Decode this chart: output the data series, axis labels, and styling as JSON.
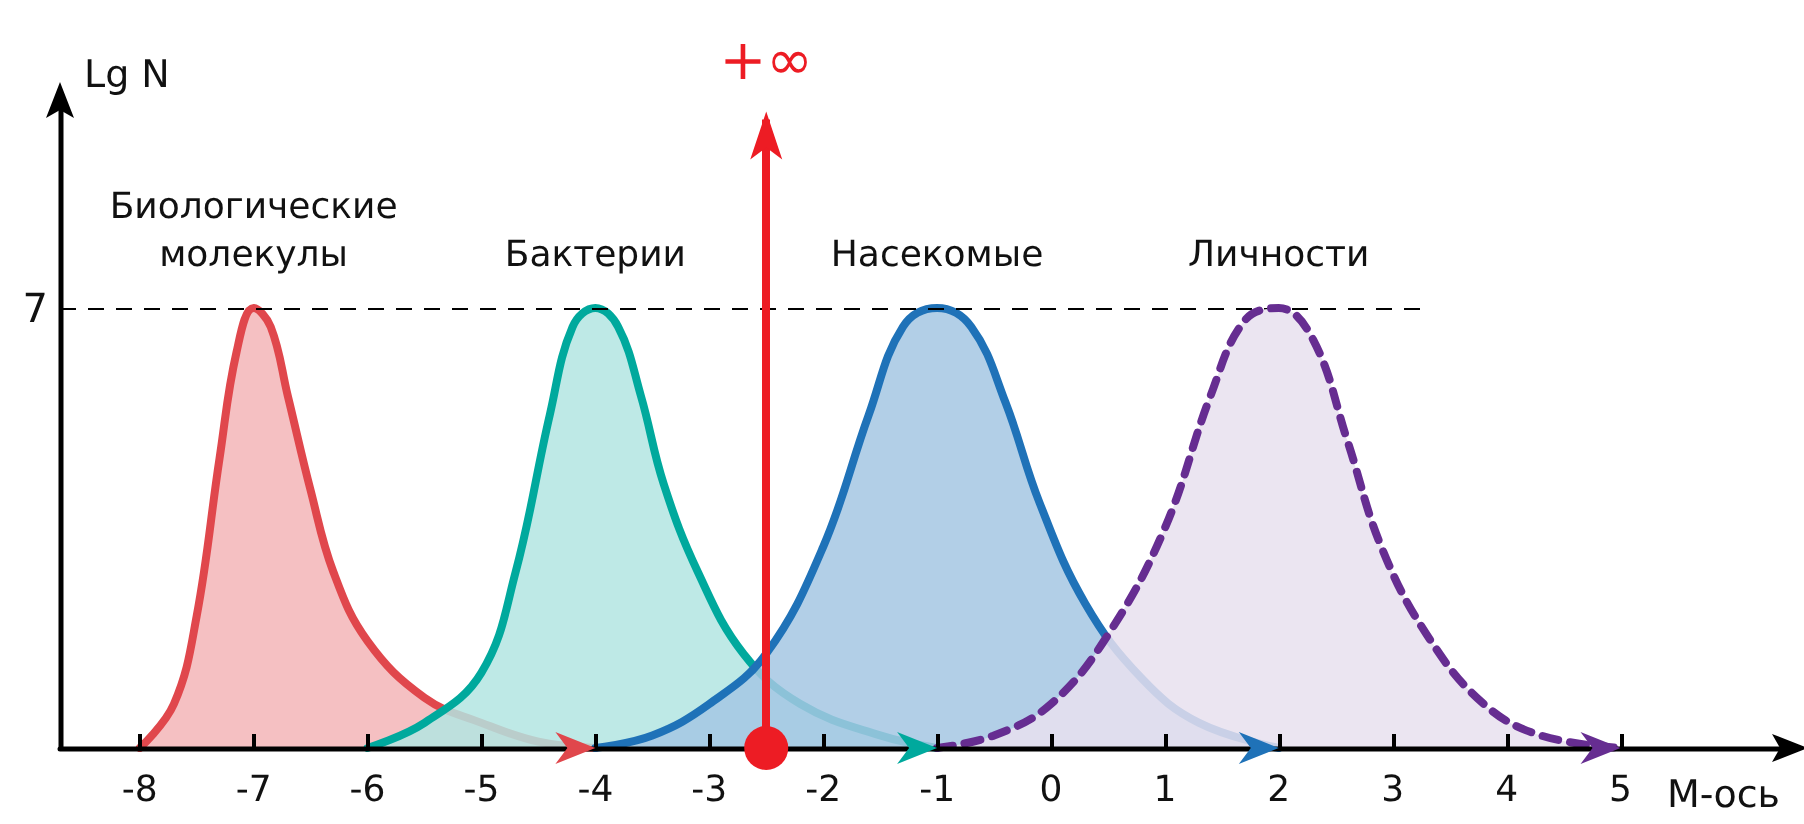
{
  "chart_data": {
    "type": "area",
    "xlabel": "M-ось",
    "ylabel": "Lg N",
    "xlim": [
      -8.7,
      6.4
    ],
    "xticks": [
      -8,
      -7,
      -6,
      -5,
      -4,
      -3,
      -2,
      -1,
      0,
      1,
      2,
      3,
      4,
      5
    ],
    "ylim": [
      0,
      10.15
    ],
    "yticks": [
      7
    ],
    "legend": false,
    "ref_lines": [
      {
        "axis": "y",
        "value": 7,
        "label": null,
        "color": "#000000",
        "line_style": "dashed"
      },
      {
        "axis": "x",
        "value": -2.5,
        "label": "+∞",
        "color": "#ed1c24",
        "line_style": "solid"
      }
    ],
    "series": [
      {
        "name": "Биологические молекулы",
        "color": "#e0474c",
        "line_style": "solid",
        "x": [
          -8,
          -7.7,
          -7.5,
          -7.3,
          -7.15,
          -7,
          -6.85,
          -6.7,
          -6.5,
          -6.3,
          -6,
          -5.5,
          -5,
          -4.5,
          -4
        ],
        "values": [
          0,
          0.7,
          2.1,
          4.6,
          6.3,
          7,
          6.7,
          5.6,
          4.1,
          2.8,
          1.7,
          0.8,
          0.4,
          0.1,
          0
        ]
      },
      {
        "name": "Бактерии",
        "color": "#00a99d",
        "line_style": "solid",
        "x": [
          -6,
          -5.5,
          -5,
          -4.7,
          -4.4,
          -4.2,
          -4,
          -3.8,
          -3.6,
          -3.4,
          -3.1,
          -2.7,
          -2.2,
          -1.5,
          -1
        ],
        "values": [
          0,
          0.4,
          1.2,
          2.8,
          5.3,
          6.7,
          7,
          6.7,
          5.6,
          4.2,
          2.8,
          1.5,
          0.7,
          0.2,
          0
        ]
      },
      {
        "name": "Насекомые",
        "color": "#1f72b8",
        "line_style": "solid",
        "x": [
          -4,
          -3.5,
          -3,
          -2.5,
          -2,
          -1.6,
          -1.3,
          -1,
          -0.7,
          -0.4,
          -0.1,
          0.3,
          0.8,
          1.3,
          2
        ],
        "values": [
          0,
          0.2,
          0.7,
          1.5,
          3.2,
          5.3,
          6.7,
          7,
          6.7,
          5.5,
          3.9,
          2.3,
          1.1,
          0.4,
          0
        ]
      },
      {
        "name": "Личности",
        "color": "#662d91",
        "line_style": "dashed",
        "x": [
          -1,
          -0.5,
          0,
          0.5,
          1,
          1.4,
          1.7,
          2,
          2.3,
          2.6,
          2.9,
          3.3,
          3.8,
          4.3,
          5
        ],
        "values": [
          0,
          0.2,
          0.7,
          1.8,
          3.5,
          5.6,
          6.8,
          7,
          6.5,
          4.9,
          3.2,
          1.8,
          0.7,
          0.2,
          0
        ]
      }
    ]
  }
}
